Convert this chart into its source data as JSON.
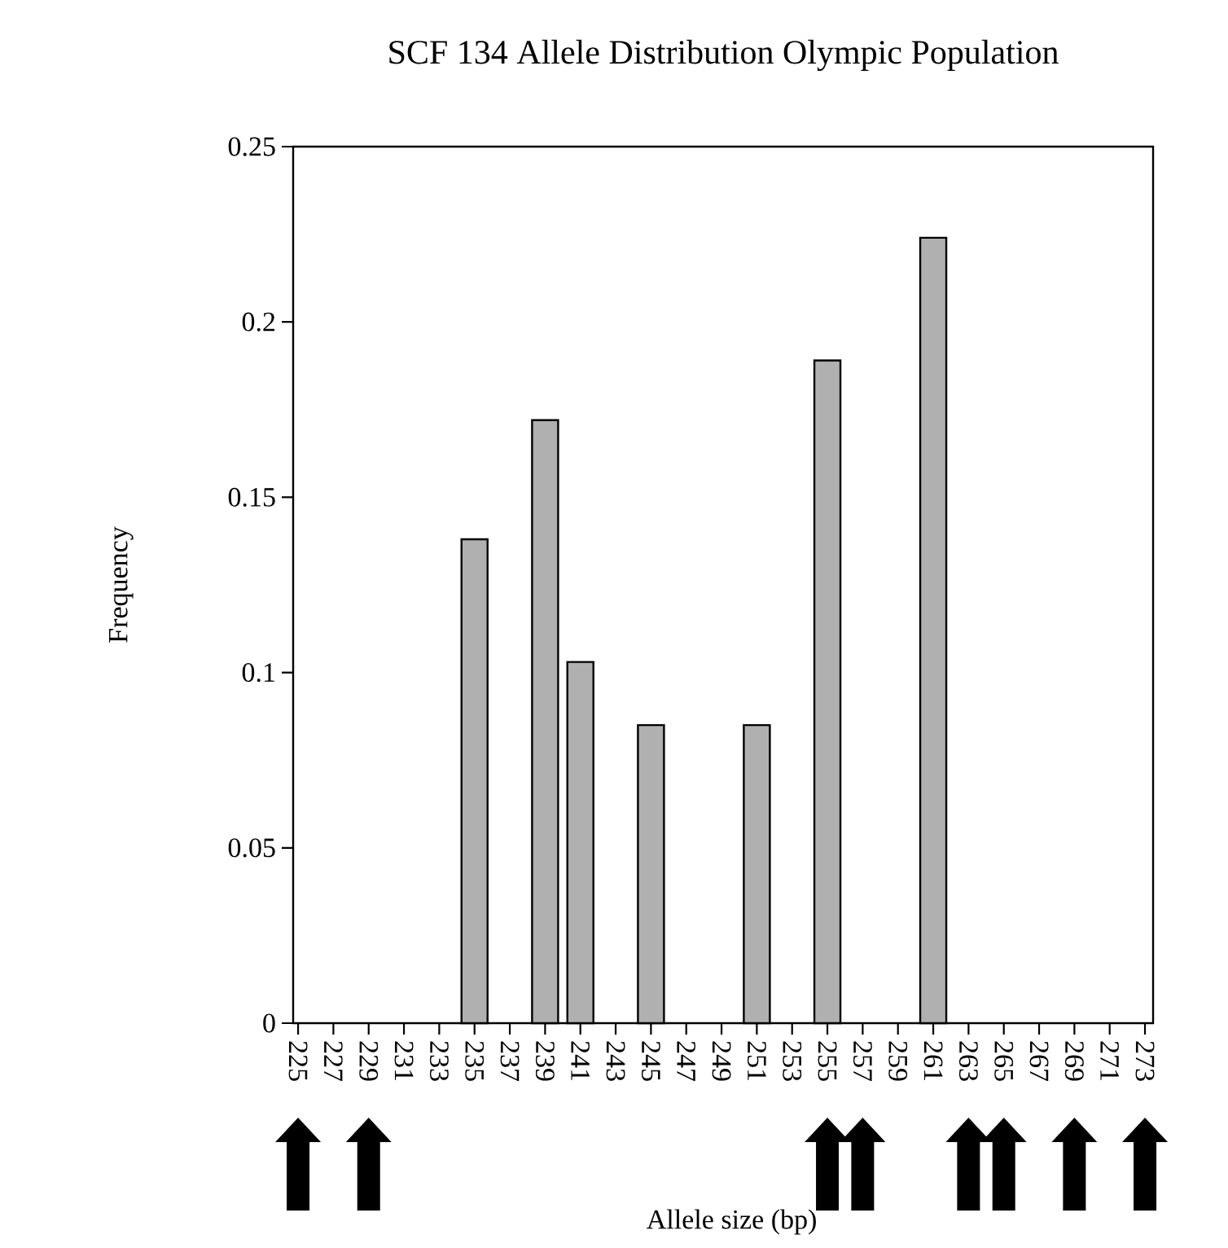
{
  "chart_data": {
    "type": "bar",
    "title": "SCF 134 Allele Distribution Olympic Population",
    "xlabel": "Allele size (bp)",
    "ylabel": "Frequency",
    "categories": [
      "225",
      "227",
      "229",
      "231",
      "233",
      "235",
      "237",
      "239",
      "241",
      "243",
      "245",
      "247",
      "249",
      "251",
      "253",
      "255",
      "257",
      "259",
      "261",
      "263",
      "265",
      "267",
      "269",
      "271",
      "273"
    ],
    "values": [
      0,
      0,
      0,
      0,
      0,
      0.138,
      0,
      0.172,
      0.103,
      0,
      0.085,
      0,
      0,
      0.085,
      0,
      0.189,
      0,
      0,
      0.224,
      0,
      0,
      0,
      0,
      0,
      0
    ],
    "color": "#b0b0b0",
    "ylim": [
      0,
      0.25
    ],
    "yticks": [
      0,
      0.05,
      0.1,
      0.15,
      0.2,
      0.25
    ],
    "grid": false
  }
}
